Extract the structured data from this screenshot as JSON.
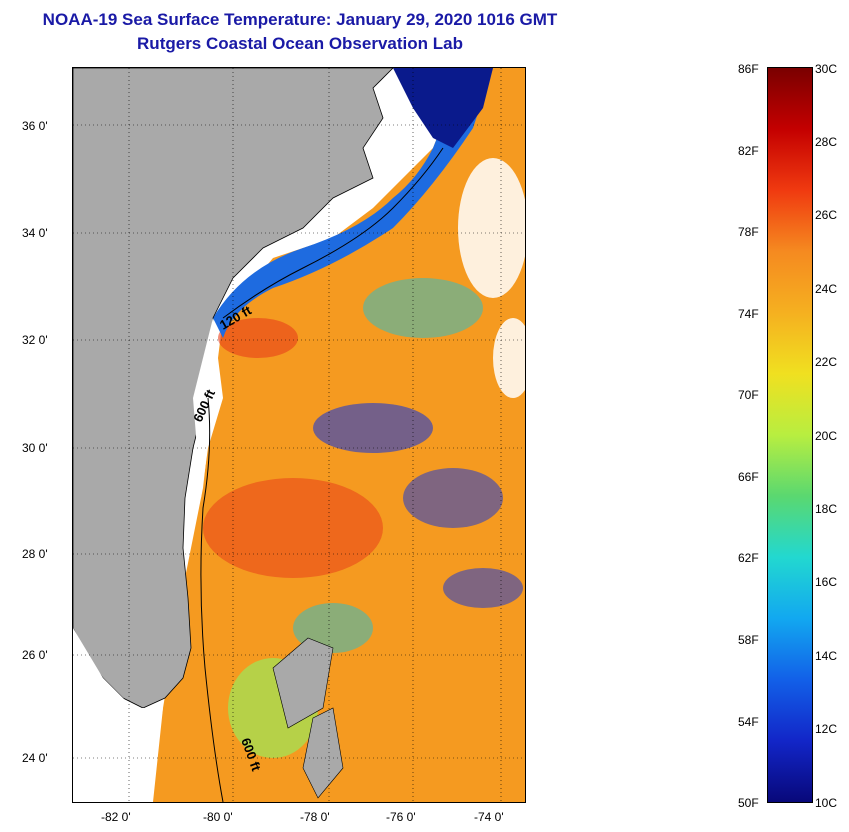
{
  "title": {
    "line1": "NOAA-19 Sea Surface Temperature:  January 29, 2020 1016 GMT",
    "line2": "Rutgers Coastal Ocean Observation Lab"
  },
  "map": {
    "latitude_labels": [
      "36 0'",
      "34 0'",
      "32 0'",
      "30 0'",
      "28 0'",
      "26 0'",
      "24 0'"
    ],
    "longitude_labels": [
      "-82 0'",
      "-80 0'",
      "-78 0'",
      "-76 0'",
      "-74 0'"
    ],
    "contour_labels": [
      "120 ft",
      "600 ft",
      "600 ft"
    ],
    "colors": {
      "land": "#a9a9a9",
      "cold": "#0a1a8c",
      "cool": "#1e6be0",
      "mid": "#22d0e0",
      "warm_green": "#9be85a",
      "yellow": "#f0e020",
      "orange": "#f59a20",
      "hot": "#e8401a"
    }
  },
  "colorbar": {
    "fahrenheit_labels": [
      "86F",
      "82F",
      "78F",
      "74F",
      "70F",
      "66F",
      "62F",
      "58F",
      "54F",
      "50F"
    ],
    "celsius_labels": [
      "30C",
      "28C",
      "26C",
      "24C",
      "22C",
      "20C",
      "18C",
      "16C",
      "14C",
      "12C",
      "10C"
    ],
    "gradient": [
      "#7a0000",
      "#c40000",
      "#f03a10",
      "#f58a20",
      "#f5b020",
      "#f0e020",
      "#b8ee40",
      "#5ad870",
      "#22d8d0",
      "#12a8f0",
      "#1260e8",
      "#1226c8",
      "#08087a"
    ]
  }
}
